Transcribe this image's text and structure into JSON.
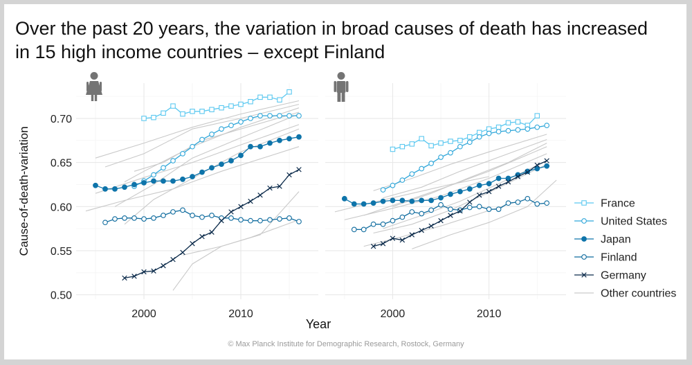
{
  "title_lines": [
    "Over the past 20 years, the variation in broad causes of death has increased",
    "in 15 high income countries – except Finland"
  ],
  "credit": "© Max Planck Institute for Demographic Research, Rostock, Germany",
  "colors": {
    "France": "#5bc8f0",
    "United States": "#2ea6d9",
    "Japan": "#0e74aa",
    "Finland": "#0e6b9e",
    "Germany": "#0b2a4a",
    "Other countries": "#c9c9c9"
  },
  "chart_data": {
    "type": "line",
    "xlabel": "Year",
    "ylabel": "Cause-of-death-variation",
    "xticks": [
      2000,
      2010
    ],
    "yticks": [
      0.5,
      0.55,
      0.6,
      0.65,
      0.7
    ],
    "xlim": [
      1993,
      2018
    ],
    "ylim": [
      0.495,
      0.74
    ],
    "legend_position": "right",
    "legend": [
      {
        "name": "France",
        "marker": "square"
      },
      {
        "name": "United States",
        "marker": "circle-open"
      },
      {
        "name": "Japan",
        "marker": "circle-filled"
      },
      {
        "name": "Finland",
        "marker": "circle-open"
      },
      {
        "name": "Germany",
        "marker": "cross"
      },
      {
        "name": "Other countries",
        "marker": "none"
      }
    ],
    "panels": [
      {
        "sex_icon": "female-icon",
        "series": [
          {
            "name": "France",
            "x": [
              2000,
              2001,
              2002,
              2003,
              2004,
              2005,
              2006,
              2007,
              2008,
              2009,
              2010,
              2011,
              2012,
              2013,
              2014,
              2015
            ],
            "values": [
              0.7,
              0.701,
              0.706,
              0.714,
              0.705,
              0.708,
              0.708,
              0.71,
              0.712,
              0.714,
              0.716,
              0.719,
              0.724,
              0.724,
              0.721,
              0.73
            ]
          },
          {
            "name": "United States",
            "x": [
              1999,
              2000,
              2001,
              2002,
              2003,
              2004,
              2005,
              2006,
              2007,
              2008,
              2009,
              2010,
              2011,
              2012,
              2013,
              2014,
              2015,
              2016
            ],
            "values": [
              0.623,
              0.629,
              0.636,
              0.644,
              0.652,
              0.66,
              0.668,
              0.676,
              0.682,
              0.688,
              0.692,
              0.696,
              0.7,
              0.703,
              0.703,
              0.703,
              0.703,
              0.703
            ]
          },
          {
            "name": "Japan",
            "x": [
              1995,
              1996,
              1997,
              1998,
              1999,
              2000,
              2001,
              2002,
              2003,
              2004,
              2005,
              2006,
              2007,
              2008,
              2009,
              2010,
              2011,
              2012,
              2013,
              2014,
              2015,
              2016
            ],
            "values": [
              0.624,
              0.62,
              0.62,
              0.622,
              0.625,
              0.627,
              0.629,
              0.629,
              0.629,
              0.631,
              0.634,
              0.639,
              0.644,
              0.648,
              0.652,
              0.658,
              0.668,
              0.668,
              0.672,
              0.675,
              0.677,
              0.679
            ]
          },
          {
            "name": "Finland",
            "x": [
              1996,
              1997,
              1998,
              1999,
              2000,
              2001,
              2002,
              2003,
              2004,
              2005,
              2006,
              2007,
              2008,
              2009,
              2010,
              2011,
              2012,
              2013,
              2014,
              2015,
              2016
            ],
            "values": [
              0.582,
              0.586,
              0.587,
              0.587,
              0.586,
              0.587,
              0.59,
              0.594,
              0.596,
              0.59,
              0.588,
              0.59,
              0.587,
              0.587,
              0.585,
              0.584,
              0.584,
              0.585,
              0.586,
              0.587,
              0.583
            ]
          },
          {
            "name": "Germany",
            "x": [
              1998,
              1999,
              2000,
              2001,
              2002,
              2003,
              2004,
              2005,
              2006,
              2007,
              2008,
              2009,
              2010,
              2011,
              2012,
              2013,
              2014,
              2015,
              2016
            ],
            "values": [
              0.519,
              0.521,
              0.526,
              0.527,
              0.533,
              0.54,
              0.548,
              0.558,
              0.566,
              0.571,
              0.584,
              0.594,
              0.6,
              0.606,
              0.613,
              0.621,
              0.623,
              0.636,
              0.642
            ]
          }
        ],
        "others": [
          {
            "x": [
              1995,
              2000,
              2005,
              2010,
              2016
            ],
            "values": [
              0.655,
              0.672,
              0.69,
              0.705,
              0.72
            ]
          },
          {
            "x": [
              1996,
              2000,
              2005,
              2010,
              2016
            ],
            "values": [
              0.645,
              0.66,
              0.688,
              0.7,
              0.716
            ]
          },
          {
            "x": [
              1998,
              2000,
              2005,
              2010,
              2016
            ],
            "values": [
              0.628,
              0.64,
              0.668,
              0.69,
              0.712
            ]
          },
          {
            "x": [
              1999,
              2002,
              2006,
              2010,
              2016
            ],
            "values": [
              0.64,
              0.65,
              0.675,
              0.688,
              0.707
            ]
          },
          {
            "x": [
              1997,
              2001,
              2005,
              2010,
              2016
            ],
            "values": [
              0.6,
              0.625,
              0.655,
              0.678,
              0.705
            ]
          },
          {
            "x": [
              1995,
              2000,
              2005,
              2010,
              2016
            ],
            "values": [
              0.615,
              0.633,
              0.65,
              0.67,
              0.693
            ]
          },
          {
            "x": [
              1998,
              2001,
              2006,
              2010,
              2016
            ],
            "values": [
              0.58,
              0.608,
              0.638,
              0.662,
              0.688
            ]
          },
          {
            "x": [
              1994,
              1998,
              2003,
              2008,
              2016
            ],
            "values": [
              0.595,
              0.607,
              0.62,
              0.64,
              0.668
            ]
          },
          {
            "x": [
              2003,
              2005,
              2008,
              2011,
              2016
            ],
            "values": [
              0.505,
              0.535,
              0.555,
              0.565,
              0.585
            ]
          },
          {
            "x": [
              2004,
              2008,
              2012,
              2016
            ],
            "values": [
              0.545,
              0.555,
              0.568,
              0.617
            ]
          }
        ]
      },
      {
        "sex_icon": "male-icon",
        "series": [
          {
            "name": "France",
            "x": [
              2000,
              2001,
              2002,
              2003,
              2004,
              2005,
              2006,
              2007,
              2008,
              2009,
              2010,
              2011,
              2012,
              2013,
              2014,
              2015
            ],
            "values": [
              0.665,
              0.668,
              0.671,
              0.677,
              0.669,
              0.672,
              0.674,
              0.675,
              0.679,
              0.684,
              0.688,
              0.69,
              0.695,
              0.696,
              0.692,
              0.703
            ]
          },
          {
            "name": "United States",
            "x": [
              1999,
              2000,
              2001,
              2002,
              2003,
              2004,
              2005,
              2006,
              2007,
              2008,
              2009,
              2010,
              2011,
              2012,
              2013,
              2014,
              2015,
              2016
            ],
            "values": [
              0.619,
              0.624,
              0.63,
              0.637,
              0.643,
              0.649,
              0.656,
              0.661,
              0.668,
              0.673,
              0.679,
              0.683,
              0.685,
              0.686,
              0.687,
              0.688,
              0.69,
              0.692
            ]
          },
          {
            "name": "Japan",
            "x": [
              1995,
              1996,
              1997,
              1998,
              1999,
              2000,
              2001,
              2002,
              2003,
              2004,
              2005,
              2006,
              2007,
              2008,
              2009,
              2010,
              2011,
              2012,
              2013,
              2014,
              2015,
              2016
            ],
            "values": [
              0.609,
              0.603,
              0.603,
              0.604,
              0.606,
              0.607,
              0.607,
              0.606,
              0.607,
              0.607,
              0.61,
              0.614,
              0.617,
              0.62,
              0.624,
              0.626,
              0.632,
              0.632,
              0.636,
              0.64,
              0.643,
              0.646
            ]
          },
          {
            "name": "Finland",
            "x": [
              1996,
              1997,
              1998,
              1999,
              2000,
              2001,
              2002,
              2003,
              2004,
              2005,
              2006,
              2007,
              2008,
              2009,
              2010,
              2011,
              2012,
              2013,
              2014,
              2015,
              2016
            ],
            "values": [
              0.574,
              0.574,
              0.58,
              0.58,
              0.584,
              0.588,
              0.594,
              0.592,
              0.596,
              0.602,
              0.597,
              0.596,
              0.599,
              0.6,
              0.597,
              0.597,
              0.604,
              0.605,
              0.609,
              0.603,
              0.604
            ]
          },
          {
            "name": "Germany",
            "x": [
              1998,
              1999,
              2000,
              2001,
              2002,
              2003,
              2004,
              2005,
              2006,
              2007,
              2008,
              2009,
              2010,
              2011,
              2012,
              2013,
              2014,
              2015,
              2016
            ],
            "values": [
              0.555,
              0.558,
              0.564,
              0.562,
              0.568,
              0.573,
              0.578,
              0.584,
              0.59,
              0.595,
              0.605,
              0.613,
              0.617,
              0.623,
              0.628,
              0.634,
              0.639,
              0.647,
              0.652
            ]
          }
        ],
        "others": [
          {
            "x": [
              1998,
              2002,
              2006,
              2010,
              2016
            ],
            "values": [
              0.618,
              0.632,
              0.648,
              0.662,
              0.682
            ]
          },
          {
            "x": [
              1999,
              2003,
              2007,
              2011,
              2016
            ],
            "values": [
              0.61,
              0.622,
              0.64,
              0.656,
              0.676
            ]
          },
          {
            "x": [
              2000,
              2004,
              2008,
              2012,
              2016
            ],
            "values": [
              0.6,
              0.615,
              0.633,
              0.65,
              0.672
            ]
          },
          {
            "x": [
              1997,
              2001,
              2005,
              2010,
              2016
            ],
            "values": [
              0.59,
              0.605,
              0.62,
              0.64,
              0.668
            ]
          },
          {
            "x": [
              1995,
              2000,
              2005,
              2010,
              2016
            ],
            "values": [
              0.585,
              0.598,
              0.612,
              0.632,
              0.66
            ]
          },
          {
            "x": [
              1999,
              2003,
              2007,
              2011,
              2016
            ],
            "values": [
              0.575,
              0.59,
              0.606,
              0.626,
              0.652
            ]
          },
          {
            "x": [
              1998,
              2002,
              2006,
              2010,
              2016
            ],
            "values": [
              0.57,
              0.58,
              0.596,
              0.616,
              0.648
            ]
          },
          {
            "x": [
              1994,
              1998,
              2002,
              2006,
              2010
            ],
            "values": [
              0.594,
              0.605,
              0.615,
              0.625,
              0.634
            ]
          },
          {
            "x": [
              1997,
              2001,
              2005,
              2009,
              2013
            ],
            "values": [
              0.555,
              0.566,
              0.578,
              0.592,
              0.606
            ]
          },
          {
            "x": [
              2002,
              2006,
              2010,
              2014,
              2017
            ],
            "values": [
              0.552,
              0.568,
              0.582,
              0.6,
              0.63
            ]
          }
        ]
      }
    ]
  }
}
